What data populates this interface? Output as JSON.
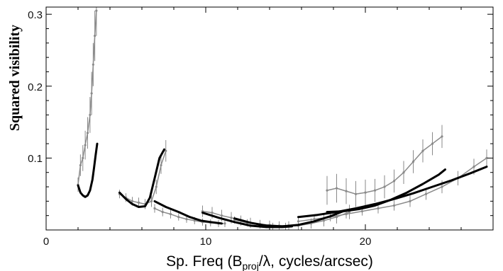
{
  "chart_data": {
    "type": "scatter",
    "xlabel": {
      "prefix": "Sp. Freq (B",
      "subscript": "proj",
      "suffix": "/λ, cycles/arcsec)"
    },
    "ylabel": "Squared visibility",
    "xlim": [
      0,
      28
    ],
    "ylim": [
      0,
      0.31
    ],
    "x_ticks": [
      "0",
      "10",
      "20"
    ],
    "y_ticks": [
      "0.1",
      "0.2",
      "0.3"
    ],
    "grid": false,
    "colors": {
      "data": "#8a8a8a",
      "model": "#000000"
    },
    "series": [
      {
        "kind": "data",
        "segments": [
          {
            "x": [
              2.0,
              2.15,
              2.3,
              2.45,
              2.6,
              2.75,
              2.85,
              2.95,
              3.05,
              3.15
            ],
            "y": [
              0.063,
              0.09,
              0.1,
              0.118,
              0.135,
              0.16,
              0.19,
              0.23,
              0.27,
              0.305
            ],
            "err": [
              0.01,
              0.015,
              0.018,
              0.02,
              0.022,
              0.025,
              0.03,
              0.03,
              0.035,
              0.035
            ]
          },
          {
            "x": [
              4.6,
              5.0,
              5.4,
              5.8,
              6.2,
              6.6,
              6.9,
              7.2,
              7.5
            ],
            "y": [
              0.05,
              0.045,
              0.04,
              0.038,
              0.036,
              0.04,
              0.06,
              0.09,
              0.11
            ],
            "err": [
              0.006,
              0.006,
              0.006,
              0.007,
              0.007,
              0.008,
              0.01,
              0.012,
              0.015
            ]
          },
          {
            "x": [
              6.8,
              7.3,
              7.8,
              8.3,
              8.8,
              9.3,
              9.8,
              10.3,
              10.8,
              11.2
            ],
            "y": [
              0.03,
              0.025,
              0.022,
              0.018,
              0.015,
              0.013,
              0.011,
              0.01,
              0.009,
              0.009
            ],
            "err": [
              0.006,
              0.006,
              0.006,
              0.005,
              0.005,
              0.005,
              0.005,
              0.005,
              0.005,
              0.005
            ]
          },
          {
            "x": [
              9.8,
              10.4,
              11.0,
              11.6,
              12.2,
              12.8,
              13.4,
              14.0,
              14.6,
              15.2
            ],
            "y": [
              0.026,
              0.024,
              0.02,
              0.017,
              0.013,
              0.01,
              0.008,
              0.007,
              0.006,
              0.006
            ],
            "err": [
              0.008,
              0.008,
              0.008,
              0.008,
              0.007,
              0.007,
              0.006,
              0.006,
              0.006,
              0.006
            ]
          },
          {
            "x": [
              11.8,
              12.6,
              13.4,
              14.2,
              15.0,
              15.8,
              16.6,
              17.4,
              18.2,
              19.0
            ],
            "y": [
              0.014,
              0.01,
              0.007,
              0.005,
              0.005,
              0.006,
              0.009,
              0.013,
              0.018,
              0.025
            ],
            "err": [
              0.005,
              0.005,
              0.005,
              0.005,
              0.005,
              0.006,
              0.007,
              0.008,
              0.009,
              0.01
            ]
          },
          {
            "x": [
              17.6,
              18.2,
              18.8,
              19.4,
              20.0,
              20.6,
              21.2,
              21.8,
              22.4,
              23.0,
              23.6,
              24.2,
              24.8
            ],
            "y": [
              0.055,
              0.058,
              0.054,
              0.05,
              0.052,
              0.055,
              0.06,
              0.068,
              0.08,
              0.095,
              0.11,
              0.12,
              0.13
            ],
            "err": [
              0.02,
              0.02,
              0.018,
              0.018,
              0.018,
              0.016,
              0.016,
              0.016,
              0.016,
              0.016,
              0.016,
              0.016,
              0.016
            ]
          },
          {
            "x": [
              15.8,
              16.8,
              17.8,
              18.8,
              19.8,
              20.8,
              21.8,
              22.8,
              23.8,
              24.8,
              25.8,
              26.8,
              27.6
            ],
            "y": [
              0.012,
              0.015,
              0.018,
              0.022,
              0.026,
              0.03,
              0.034,
              0.04,
              0.05,
              0.06,
              0.072,
              0.088,
              0.1
            ],
            "err": [
              0.005,
              0.005,
              0.006,
              0.006,
              0.006,
              0.007,
              0.007,
              0.008,
              0.008,
              0.009,
              0.01,
              0.011,
              0.012
            ]
          }
        ]
      },
      {
        "kind": "model",
        "segments": [
          {
            "x": [
              2.0,
              2.15,
              2.3,
              2.45,
              2.6,
              2.75,
              2.9,
              3.0,
              3.1,
              3.2
            ],
            "y": [
              0.062,
              0.052,
              0.048,
              0.046,
              0.048,
              0.055,
              0.07,
              0.086,
              0.104,
              0.12
            ]
          },
          {
            "x": [
              4.6,
              5.0,
              5.4,
              5.8,
              6.2,
              6.5,
              6.8,
              7.1,
              7.4
            ],
            "y": [
              0.052,
              0.043,
              0.036,
              0.032,
              0.033,
              0.045,
              0.072,
              0.1,
              0.112
            ]
          },
          {
            "x": [
              6.8,
              7.5,
              8.3,
              9.0,
              9.7,
              10.3,
              11.0
            ],
            "y": [
              0.04,
              0.032,
              0.025,
              0.018,
              0.013,
              0.011,
              0.009
            ]
          },
          {
            "x": [
              9.8,
              10.8,
              11.8,
              12.8,
              13.8,
              14.8,
              15.4
            ],
            "y": [
              0.024,
              0.017,
              0.011,
              0.006,
              0.004,
              0.004,
              0.005
            ]
          },
          {
            "x": [
              11.8,
              12.8,
              13.8,
              14.8,
              15.8,
              16.8,
              17.8,
              18.6
            ],
            "y": [
              0.016,
              0.01,
              0.006,
              0.005,
              0.007,
              0.012,
              0.019,
              0.026
            ]
          },
          {
            "x": [
              17.6,
              18.6,
              19.6,
              20.6,
              21.6,
              22.6,
              23.6,
              24.6,
              25.0
            ],
            "y": [
              0.025,
              0.026,
              0.029,
              0.034,
              0.042,
              0.052,
              0.064,
              0.077,
              0.084
            ]
          },
          {
            "x": [
              15.8,
              17.0,
              18.2,
              19.4,
              20.6,
              21.8,
              23.0,
              24.2,
              25.4,
              26.6,
              27.6
            ],
            "y": [
              0.018,
              0.021,
              0.025,
              0.03,
              0.036,
              0.043,
              0.051,
              0.06,
              0.069,
              0.079,
              0.088
            ]
          }
        ]
      }
    ]
  }
}
